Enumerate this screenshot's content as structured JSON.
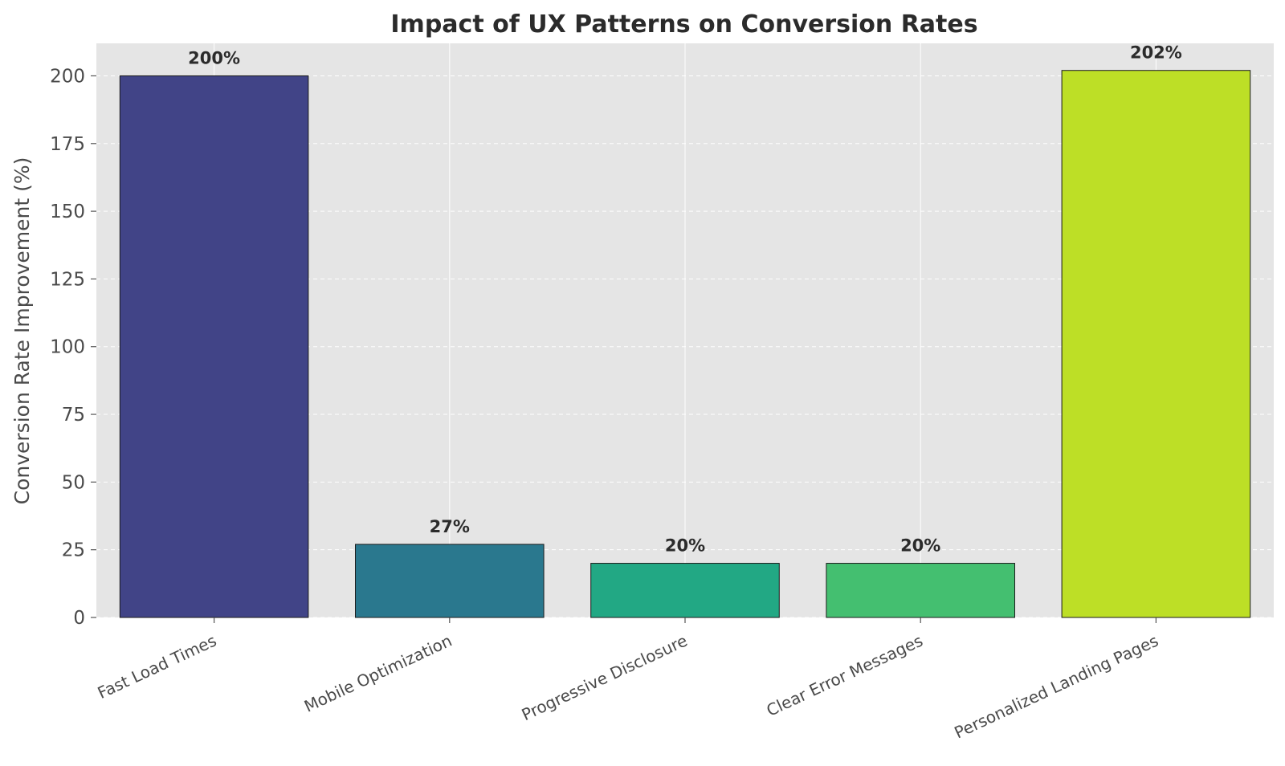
{
  "chart_data": {
    "type": "bar",
    "title": "Impact of UX Patterns on Conversion Rates",
    "xlabel": "",
    "ylabel": "Conversion Rate Improvement (%)",
    "categories": [
      "Fast Load Times",
      "Mobile Optimization",
      "Progressive Disclosure",
      "Clear Error Messages",
      "Personalized Landing Pages"
    ],
    "values": [
      200,
      27,
      20,
      20,
      202
    ],
    "data_labels": [
      "200%",
      "27%",
      "20%",
      "20%",
      "202%"
    ],
    "colors": [
      "#414487",
      "#2a788e",
      "#22a884",
      "#44bf70",
      "#bddf26"
    ],
    "yticks": [
      0,
      25,
      50,
      75,
      100,
      125,
      150,
      175,
      200
    ],
    "ylim": [
      0,
      212
    ],
    "grid": true,
    "background": "#e5e5e5"
  }
}
